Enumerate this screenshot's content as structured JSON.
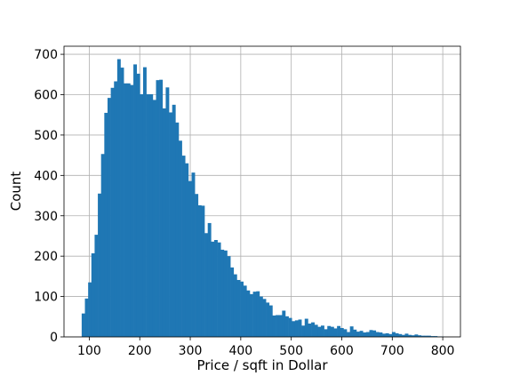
{
  "chart_data": {
    "type": "bar",
    "subtype": "histogram",
    "title": "",
    "xlabel": "Price / sqft in Dollar",
    "ylabel": "Count",
    "xlim": [
      50,
      835
    ],
    "ylim": [
      0,
      720
    ],
    "xticks": [
      100,
      200,
      300,
      400,
      500,
      600,
      700,
      800
    ],
    "yticks": [
      0,
      100,
      200,
      300,
      400,
      500,
      600,
      700
    ],
    "grid": true,
    "bar_color": "#1f77b4",
    "bin_start": 85,
    "bin_width": 6.4,
    "values": [
      58,
      95,
      135,
      207,
      253,
      355,
      453,
      555,
      592,
      617,
      633,
      688,
      667,
      628,
      628,
      624,
      675,
      652,
      601,
      668,
      601,
      601,
      587,
      636,
      637,
      566,
      618,
      556,
      575,
      531,
      486,
      449,
      430,
      386,
      407,
      354,
      326,
      325,
      257,
      282,
      236,
      240,
      234,
      216,
      214,
      200,
      172,
      155,
      141,
      137,
      127,
      115,
      106,
      112,
      113,
      100,
      94,
      85,
      78,
      53,
      54,
      54,
      65,
      51,
      47,
      39,
      41,
      43,
      28,
      45,
      33,
      36,
      30,
      25,
      28,
      19,
      27,
      25,
      21,
      27,
      22,
      19,
      12,
      26,
      18,
      13,
      15,
      11,
      12,
      17,
      16,
      12,
      11,
      8,
      9,
      7,
      12,
      9,
      7,
      5,
      8,
      5,
      4,
      6,
      4,
      3,
      3,
      3,
      2,
      2,
      1,
      1
    ]
  }
}
